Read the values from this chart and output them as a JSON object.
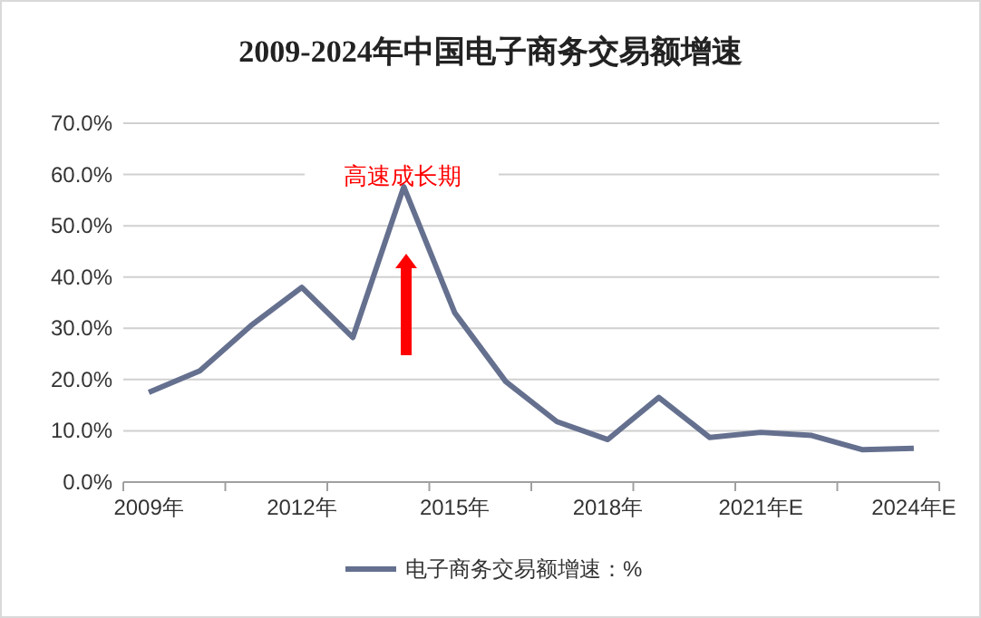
{
  "chart_data": {
    "type": "line",
    "title": "2009-2024年中国电子商务交易额增速",
    "categories": [
      "2009年",
      null,
      null,
      "2012年",
      null,
      null,
      "2015年",
      null,
      null,
      "2018年",
      null,
      null,
      "2021年E",
      null,
      null,
      "2024年E"
    ],
    "series": [
      {
        "name": "电子商务交易额增速：%",
        "color": "#65708f",
        "values": [
          17.5,
          21.7,
          30.5,
          38.0,
          28.2,
          57.6,
          33.0,
          19.6,
          11.8,
          8.3,
          16.5,
          8.7,
          9.7,
          9.1,
          6.3,
          6.6
        ]
      }
    ],
    "ylim": [
      0,
      70
    ],
    "yticks": [
      {
        "value": 0,
        "label": "0.0%"
      },
      {
        "value": 10,
        "label": "10.0%"
      },
      {
        "value": 20,
        "label": "20.0%"
      },
      {
        "value": 30,
        "label": "30.0%"
      },
      {
        "value": 40,
        "label": "40.0%"
      },
      {
        "value": 50,
        "label": "50.0%"
      },
      {
        "value": 60,
        "label": "60.0%"
      },
      {
        "value": 70,
        "label": "70.0%"
      }
    ],
    "grid": "y",
    "legend": "bottom",
    "marker": "none",
    "line_style": "solid",
    "annotations": [
      "高速成长期"
    ]
  }
}
